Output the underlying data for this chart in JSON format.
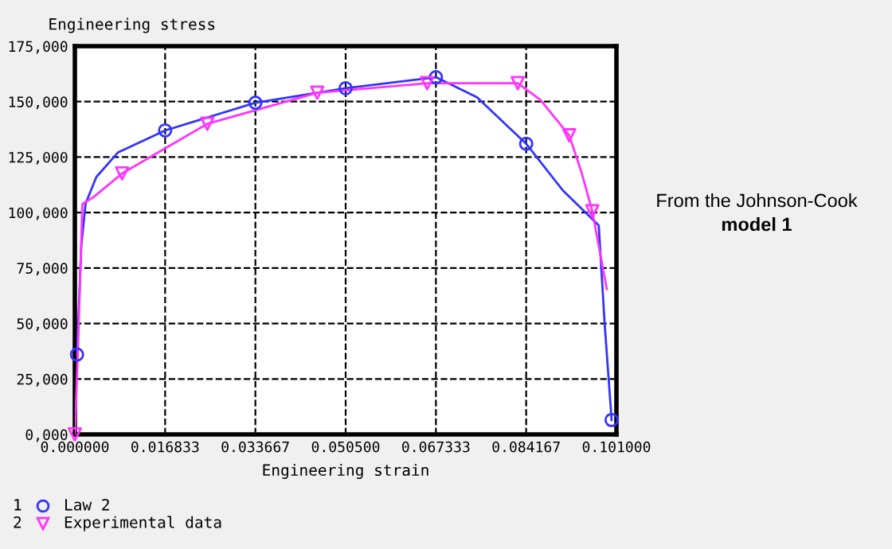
{
  "chart_data": {
    "type": "line",
    "ylabel": "Engineering stress",
    "xlabel": "Engineering strain",
    "xlim": [
      0,
      0.101
    ],
    "ylim": [
      0,
      175000
    ],
    "xticks": [
      {
        "value": 0,
        "label": "0.000000"
      },
      {
        "value": 0.016833,
        "label": "0.016833"
      },
      {
        "value": 0.033667,
        "label": "0.033667"
      },
      {
        "value": 0.0505,
        "label": "0.050500"
      },
      {
        "value": 0.067333,
        "label": "0.067333"
      },
      {
        "value": 0.084167,
        "label": "0.084167"
      },
      {
        "value": 0.101,
        "label": "0.101000"
      }
    ],
    "yticks": [
      {
        "value": 0,
        "label": "0,000"
      },
      {
        "value": 25000,
        "label": "25,000"
      },
      {
        "value": 50000,
        "label": "50,000"
      },
      {
        "value": 75000,
        "label": "75,000"
      },
      {
        "value": 100000,
        "label": "100,000"
      },
      {
        "value": 125000,
        "label": "125,000"
      },
      {
        "value": 150000,
        "label": "150,000"
      },
      {
        "value": 175000,
        "label": "175,000"
      }
    ],
    "grid": true,
    "legend": "bottom left",
    "series": [
      {
        "color": "#3333ff",
        "marker": "none",
        "x": [
          0.0004,
          0.0012,
          0.002,
          0.004,
          0.008,
          0.016833,
          0.033667,
          0.0505,
          0.067333,
          0.075,
          0.084167,
          0.091,
          0.0977,
          0.0988,
          0.1001
        ],
        "values": [
          36000,
          85000,
          104000,
          116000,
          127000,
          137000,
          149500,
          156000,
          161000,
          152000,
          131000,
          110000,
          94200,
          50000,
          6500
        ]
      },
      {
        "color": "#ff33ff",
        "marker": "none",
        "x": [
          0,
          0.0006,
          0.0014,
          0.0035,
          0.0088,
          0.0247,
          0.0452,
          0.0657,
          0.0826,
          0.0868,
          0.0922,
          0.0945,
          0.0965,
          0.0992
        ],
        "values": [
          0,
          40000,
          103800,
          107000,
          117600,
          140000,
          154000,
          158300,
          158300,
          150800,
          134800,
          118000,
          100600,
          65500
        ]
      },
      {
        "type": "scatter",
        "name": "Law 2",
        "color": "#3333ff",
        "marker": "circle",
        "x": [
          0.0004,
          0.016833,
          0.033667,
          0.0505,
          0.067333,
          0.084167,
          0.1001
        ],
        "values": [
          36000,
          137000,
          149500,
          156000,
          161000,
          131000,
          6500
        ]
      },
      {
        "type": "scatter",
        "name": "Experimental data",
        "color": "#ff33ff",
        "marker": "triangle",
        "x": [
          0,
          0.0088,
          0.0247,
          0.0452,
          0.0657,
          0.0826,
          0.0922,
          0.0965
        ],
        "values": [
          0,
          117600,
          140000,
          154000,
          158300,
          158300,
          134800,
          100600
        ]
      }
    ],
    "annotations": [
      "From the Johnson-Cook",
      "model 1",
      "1",
      "2"
    ]
  }
}
